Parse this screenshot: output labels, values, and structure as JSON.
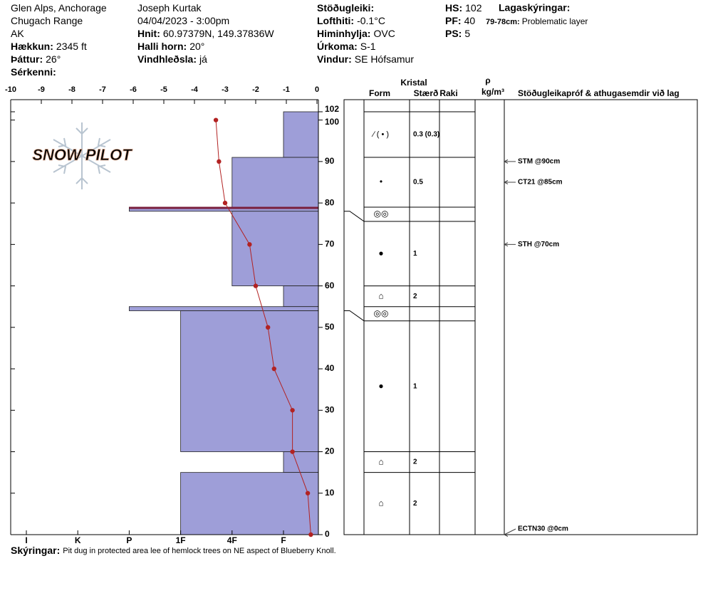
{
  "header": {
    "columns": [
      [
        {
          "text": "Glen Alps, Anchorage"
        },
        {
          "text": "Chugach Range"
        },
        {
          "text": "AK"
        },
        {
          "label": "Hækkun:",
          "value": "2345 ft"
        },
        {
          "label": "Þáttur:",
          "value": "26°"
        },
        {
          "label": "Sérkenni:"
        }
      ],
      [
        {
          "text": "Joseph Kurtak"
        },
        {
          "text": "04/04/2023 - 3:00pm"
        },
        {
          "label": "Hnit:",
          "value": "60.97379N, 149.37836W"
        },
        {
          "label": "Halli horn:",
          "value": "20°"
        },
        {
          "label": "Vindhleðsla:",
          "value": "já"
        }
      ],
      [
        {
          "label": "Stöðugleiki:"
        },
        {
          "label": "Lofthiti:",
          "value": "-0.1°C"
        },
        {
          "label": "Himinhylja:",
          "value": "OVC"
        },
        {
          "label": "Úrkoma:",
          "value": "S-1"
        },
        {
          "label": "Vindur:",
          "value": "SE Hófsamur"
        }
      ],
      [
        {
          "label": "HS:",
          "value": "102"
        },
        {
          "label": "PF:",
          "value": "40"
        },
        {
          "label": "PS:",
          "value": "5"
        }
      ]
    ],
    "legend_title": "Lagaskýringar:",
    "legend": [
      {
        "label": "79-78cm:",
        "value": "Problematic layer"
      }
    ]
  },
  "logo": "SNOW PILOT",
  "footer": {
    "label": "Skýringar:",
    "value": "Pit dug in protected area lee of hemlock trees on NE aspect of Blueberry Knoll."
  },
  "chart_data": {
    "type": "snow-profile",
    "xlim": [
      -10,
      0
    ],
    "xticks": [
      -10,
      -9,
      -8,
      -7,
      -6,
      -5,
      -4,
      -3,
      -2,
      -1,
      0
    ],
    "ylim": [
      0,
      102
    ],
    "yticks": [
      0,
      10,
      20,
      30,
      40,
      50,
      60,
      70,
      80,
      90,
      100,
      102
    ],
    "hardness_categories": [
      "I",
      "K",
      "P",
      "1F",
      "4F",
      "F"
    ],
    "layer_color": "#9e9ed8",
    "problematic_color": "#7a1f3d",
    "temperature": {
      "color": "#b22222",
      "depths": [
        100,
        90,
        80,
        70,
        60,
        50,
        40,
        30,
        20,
        10,
        0
      ],
      "values": [
        -3.3,
        -3.2,
        -3.0,
        -2.2,
        -2.0,
        -1.6,
        -1.4,
        -0.8,
        -0.8,
        -0.3,
        -0.2
      ]
    },
    "layers": [
      {
        "top": 102,
        "bottom": 91,
        "hardness": "F",
        "form": "∕ ( • )",
        "size": "0.3 (0.3)"
      },
      {
        "top": 91,
        "bottom": 79,
        "hardness": "4F",
        "form": "•",
        "size": "0.5"
      },
      {
        "top": 79,
        "bottom": 78,
        "hardness": "P",
        "form": "◎◎",
        "problematic": true
      },
      {
        "top": 78,
        "bottom": 60,
        "hardness": "4F",
        "form": "●",
        "size": "1"
      },
      {
        "top": 60,
        "bottom": 55,
        "hardness": "F",
        "form": "⌂",
        "size": "2"
      },
      {
        "top": 55,
        "bottom": 54,
        "hardness": "P",
        "form": "◎◎"
      },
      {
        "top": 54,
        "bottom": 20,
        "hardness": "1F",
        "form": "●",
        "size": "1"
      },
      {
        "top": 20,
        "bottom": 15,
        "hardness": "F",
        "form": "⌂",
        "size": "2"
      },
      {
        "top": 15,
        "bottom": 0,
        "hardness": "1F",
        "form": "⌂",
        "size": "2"
      }
    ],
    "table_headers": {
      "crystal": "Kristal",
      "form": "Form",
      "size": "Stærð",
      "moisture": "Raki",
      "rho": "ρ",
      "density_unit": "kg/m³",
      "tests": "Stöðugleikapróf & athugasemdir við lag"
    },
    "tests": [
      {
        "label": "STM @90cm",
        "depth": 90
      },
      {
        "label": "CT21 @85cm",
        "depth": 85
      },
      {
        "label": "STH @70cm",
        "depth": 70
      },
      {
        "label": "ECTN30 @0cm",
        "depth": 0
      }
    ]
  }
}
